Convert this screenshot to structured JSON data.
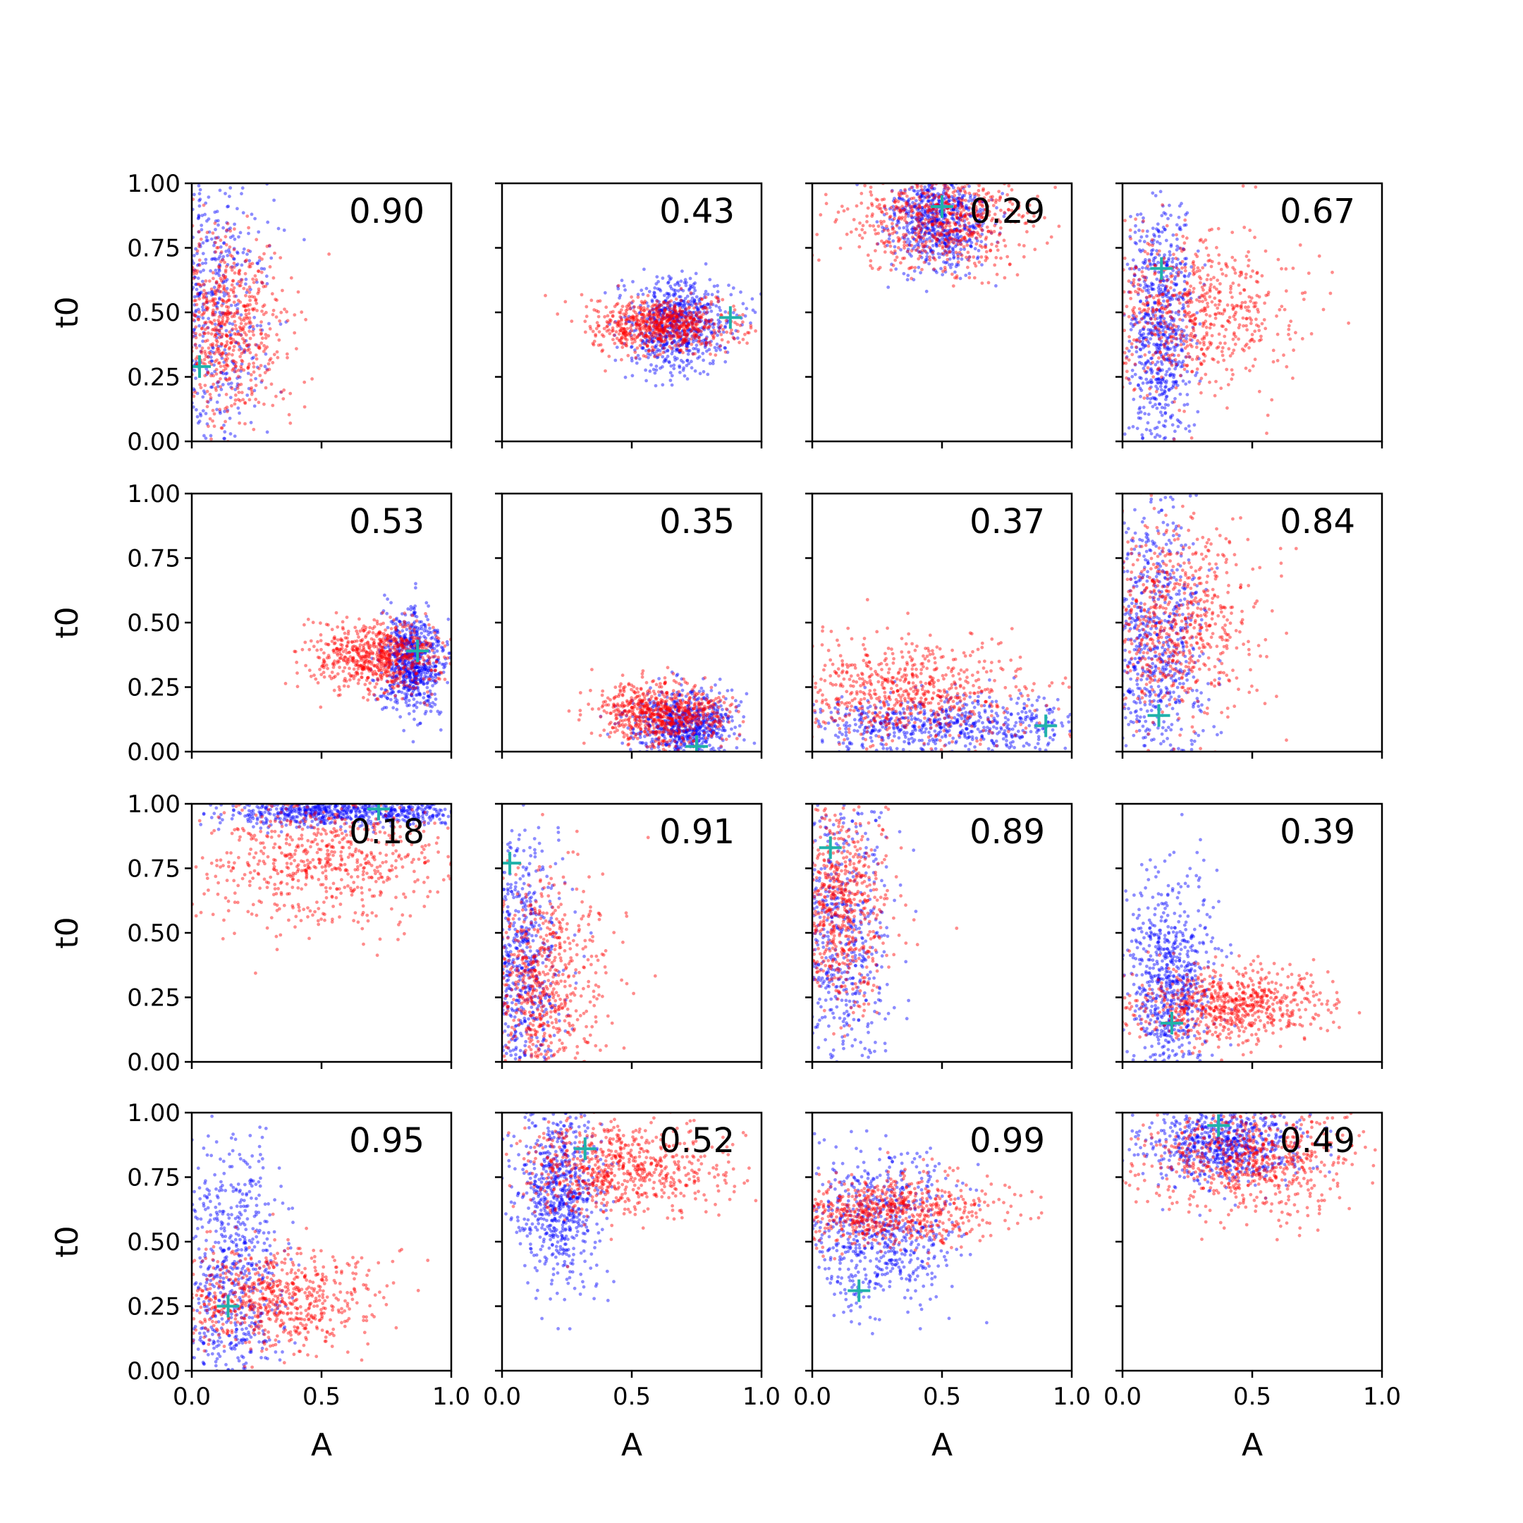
{
  "chart_data": {
    "type": "scatter",
    "layout": "4x4 grid of scatter subplots with shared axes",
    "xlabel": "A",
    "ylabel": "t0",
    "xlim": [
      0.0,
      1.0
    ],
    "ylim": [
      0.0,
      1.0
    ],
    "xticks": [
      "0.0",
      "0.5",
      "1.0"
    ],
    "yticks": [
      "0.00",
      "0.25",
      "0.50",
      "0.75",
      "1.00"
    ],
    "grid": false,
    "colors": {
      "series_blue": "#0000ff",
      "series_red": "#ff0000",
      "truth_marker": "#20b2aa"
    },
    "panels": [
      {
        "label": "0.90",
        "truth": [
          0.03,
          0.29
        ],
        "blue": {
          "cx": 0.05,
          "cy": 0.55,
          "sx": 0.12,
          "sy": 0.35
        },
        "red": {
          "cx": 0.12,
          "cy": 0.45,
          "sx": 0.12,
          "sy": 0.17
        }
      },
      {
        "label": "0.43",
        "truth": [
          0.88,
          0.48
        ],
        "blue": {
          "cx": 0.68,
          "cy": 0.45,
          "sx": 0.1,
          "sy": 0.09
        },
        "red": {
          "cx": 0.62,
          "cy": 0.45,
          "sx": 0.14,
          "sy": 0.05
        }
      },
      {
        "label": "0.29",
        "truth": [
          0.5,
          0.91
        ],
        "blue": {
          "cx": 0.48,
          "cy": 0.86,
          "sx": 0.09,
          "sy": 0.1
        },
        "red": {
          "cx": 0.5,
          "cy": 0.86,
          "sx": 0.18,
          "sy": 0.1
        }
      },
      {
        "label": "0.67",
        "truth": [
          0.15,
          0.67
        ],
        "blue": {
          "cx": 0.15,
          "cy": 0.45,
          "sx": 0.06,
          "sy": 0.25
        },
        "red": {
          "cx": 0.25,
          "cy": 0.5,
          "sx": 0.2,
          "sy": 0.15
        }
      },
      {
        "label": "0.53",
        "truth": [
          0.87,
          0.39
        ],
        "blue": {
          "cx": 0.85,
          "cy": 0.35,
          "sx": 0.06,
          "sy": 0.1
        },
        "red": {
          "cx": 0.72,
          "cy": 0.37,
          "sx": 0.12,
          "sy": 0.07
        }
      },
      {
        "label": "0.35",
        "truth": [
          0.75,
          0.02
        ],
        "blue": {
          "cx": 0.7,
          "cy": 0.1,
          "sx": 0.1,
          "sy": 0.07
        },
        "red": {
          "cx": 0.62,
          "cy": 0.15,
          "sx": 0.12,
          "sy": 0.06
        }
      },
      {
        "label": "0.37",
        "truth": [
          0.9,
          0.1
        ],
        "blue": {
          "cx": 0.5,
          "cy": 0.1,
          "sx": 0.3,
          "sy": 0.06
        },
        "red": {
          "cx": 0.35,
          "cy": 0.22,
          "sx": 0.25,
          "sy": 0.1
        }
      },
      {
        "label": "0.84",
        "truth": [
          0.14,
          0.14
        ],
        "blue": {
          "cx": 0.12,
          "cy": 0.45,
          "sx": 0.1,
          "sy": 0.28
        },
        "red": {
          "cx": 0.2,
          "cy": 0.5,
          "sx": 0.15,
          "sy": 0.2
        }
      },
      {
        "label": "0.18",
        "truth": [
          0.72,
          0.98
        ],
        "blue": {
          "cx": 0.6,
          "cy": 0.97,
          "sx": 0.25,
          "sy": 0.03
        },
        "red": {
          "cx": 0.5,
          "cy": 0.8,
          "sx": 0.25,
          "sy": 0.14
        }
      },
      {
        "label": "0.91",
        "truth": [
          0.03,
          0.77
        ],
        "blue": {
          "cx": 0.07,
          "cy": 0.3,
          "sx": 0.08,
          "sy": 0.28
        },
        "red": {
          "cx": 0.15,
          "cy": 0.3,
          "sx": 0.12,
          "sy": 0.2
        }
      },
      {
        "label": "0.89",
        "truth": [
          0.07,
          0.83
        ],
        "blue": {
          "cx": 0.08,
          "cy": 0.5,
          "sx": 0.12,
          "sy": 0.3
        },
        "red": {
          "cx": 0.1,
          "cy": 0.6,
          "sx": 0.1,
          "sy": 0.2
        }
      },
      {
        "label": "0.39",
        "truth": [
          0.19,
          0.15
        ],
        "blue": {
          "cx": 0.18,
          "cy": 0.3,
          "sx": 0.08,
          "sy": 0.2
        },
        "red": {
          "cx": 0.4,
          "cy": 0.22,
          "sx": 0.2,
          "sy": 0.07
        }
      },
      {
        "label": "0.95",
        "truth": [
          0.14,
          0.25
        ],
        "blue": {
          "cx": 0.15,
          "cy": 0.35,
          "sx": 0.1,
          "sy": 0.28
        },
        "red": {
          "cx": 0.3,
          "cy": 0.28,
          "sx": 0.2,
          "sy": 0.1
        }
      },
      {
        "label": "0.52",
        "truth": [
          0.32,
          0.86
        ],
        "blue": {
          "cx": 0.22,
          "cy": 0.7,
          "sx": 0.08,
          "sy": 0.18
        },
        "red": {
          "cx": 0.45,
          "cy": 0.78,
          "sx": 0.2,
          "sy": 0.09
        }
      },
      {
        "label": "0.99",
        "truth": [
          0.18,
          0.31
        ],
        "blue": {
          "cx": 0.25,
          "cy": 0.55,
          "sx": 0.15,
          "sy": 0.15
        },
        "red": {
          "cx": 0.3,
          "cy": 0.62,
          "sx": 0.2,
          "sy": 0.07
        }
      },
      {
        "label": "0.49",
        "truth": [
          0.37,
          0.95
        ],
        "blue": {
          "cx": 0.38,
          "cy": 0.88,
          "sx": 0.15,
          "sy": 0.08
        },
        "red": {
          "cx": 0.5,
          "cy": 0.82,
          "sx": 0.2,
          "sy": 0.1
        }
      }
    ]
  }
}
